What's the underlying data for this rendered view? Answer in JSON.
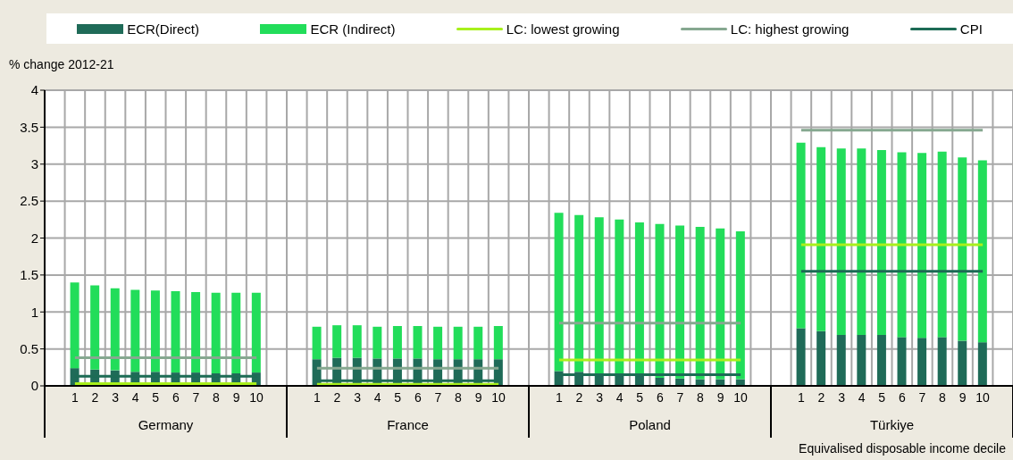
{
  "chart_data": {
    "type": "bar",
    "stacked": true,
    "ylabel": "% change 2012-21",
    "xlabel": "Equivalised disposable income decile",
    "categories": [
      null,
      "1",
      "2",
      "3",
      "4",
      "5",
      "6",
      "7",
      "8",
      "9",
      "10",
      null,
      null,
      "1",
      "2",
      "3",
      "4",
      "5",
      "6",
      "7",
      "8",
      "9",
      "10",
      null,
      null,
      "1",
      "2",
      "3",
      "4",
      "5",
      "6",
      "7",
      "8",
      "9",
      "10",
      null,
      null,
      "1",
      "2",
      "3",
      "4",
      "5",
      "6",
      "7",
      "8",
      "9",
      "10",
      null
    ],
    "annotations": [
      "Germany",
      "France",
      "Poland",
      "Türkiye"
    ],
    "series": [
      {
        "name": "ECR(Direct)",
        "color": "#1f6b58",
        "values": [
          null,
          0.24,
          0.22,
          0.21,
          0.19,
          0.19,
          0.18,
          0.18,
          0.17,
          0.17,
          0.18,
          null,
          null,
          0.36,
          0.38,
          0.38,
          0.37,
          0.37,
          0.37,
          0.36,
          0.36,
          0.36,
          0.36,
          null,
          null,
          0.2,
          0.19,
          0.17,
          0.16,
          0.16,
          0.11,
          0.1,
          0.09,
          0.09,
          0.09,
          null,
          null,
          0.78,
          0.74,
          0.69,
          0.69,
          0.69,
          0.66,
          0.65,
          0.66,
          0.61,
          0.59,
          null
        ]
      },
      {
        "name": "ECR (Indirect)",
        "color": "#22dd5a",
        "values": [
          null,
          1.16,
          1.14,
          1.11,
          1.11,
          1.1,
          1.1,
          1.09,
          1.09,
          1.09,
          1.08,
          null,
          null,
          0.44,
          0.44,
          0.44,
          0.43,
          0.44,
          0.44,
          0.44,
          0.44,
          0.44,
          0.45,
          null,
          null,
          2.14,
          2.12,
          2.11,
          2.09,
          2.05,
          2.08,
          2.07,
          2.06,
          2.04,
          2.0,
          null,
          null,
          2.51,
          2.49,
          2.52,
          2.52,
          2.5,
          2.5,
          2.5,
          2.51,
          2.48,
          2.46,
          null
        ]
      },
      {
        "name": "LC: lowest growing",
        "type": "line",
        "color": "#a8f01c",
        "values": [
          null,
          0.03,
          0.03,
          0.03,
          0.03,
          0.03,
          0.03,
          0.03,
          0.03,
          0.03,
          0.03,
          null,
          null,
          0.02,
          0.02,
          0.02,
          0.02,
          0.02,
          0.02,
          0.02,
          0.02,
          0.02,
          0.02,
          null,
          null,
          0.35,
          0.35,
          0.35,
          0.35,
          0.35,
          0.35,
          0.35,
          0.35,
          0.35,
          0.35,
          null,
          null,
          1.91,
          1.91,
          1.91,
          1.91,
          1.91,
          1.91,
          1.91,
          1.91,
          1.91,
          1.91,
          null
        ]
      },
      {
        "name": "LC: highest growing",
        "type": "line",
        "color": "#86a890",
        "values": [
          null,
          0.38,
          0.38,
          0.38,
          0.38,
          0.38,
          0.38,
          0.38,
          0.38,
          0.38,
          0.38,
          null,
          null,
          0.24,
          0.24,
          0.24,
          0.24,
          0.24,
          0.24,
          0.24,
          0.24,
          0.24,
          0.24,
          null,
          null,
          0.85,
          0.85,
          0.85,
          0.85,
          0.85,
          0.85,
          0.85,
          0.85,
          0.85,
          0.85,
          null,
          null,
          3.46,
          3.46,
          3.46,
          3.46,
          3.46,
          3.46,
          3.46,
          3.46,
          3.46,
          3.46,
          null
        ]
      },
      {
        "name": "CPI",
        "type": "line",
        "color": "#1d6b55",
        "values": [
          null,
          0.13,
          0.13,
          0.13,
          0.13,
          0.13,
          0.13,
          0.13,
          0.13,
          0.13,
          0.13,
          null,
          null,
          0.07,
          0.07,
          0.07,
          0.07,
          0.07,
          0.07,
          0.07,
          0.07,
          0.07,
          0.07,
          null,
          null,
          0.15,
          0.15,
          0.15,
          0.15,
          0.15,
          0.15,
          0.15,
          0.15,
          0.15,
          0.15,
          null,
          null,
          1.55,
          1.55,
          1.55,
          1.55,
          1.55,
          1.55,
          1.55,
          1.55,
          1.55,
          1.55,
          null
        ]
      }
    ],
    "ylim": [
      0,
      4
    ],
    "yticks": [
      0,
      0.5,
      1,
      1.5,
      2,
      2.5,
      3,
      3.5,
      4
    ],
    "grid": true,
    "legend": "top",
    "marker": "none"
  }
}
